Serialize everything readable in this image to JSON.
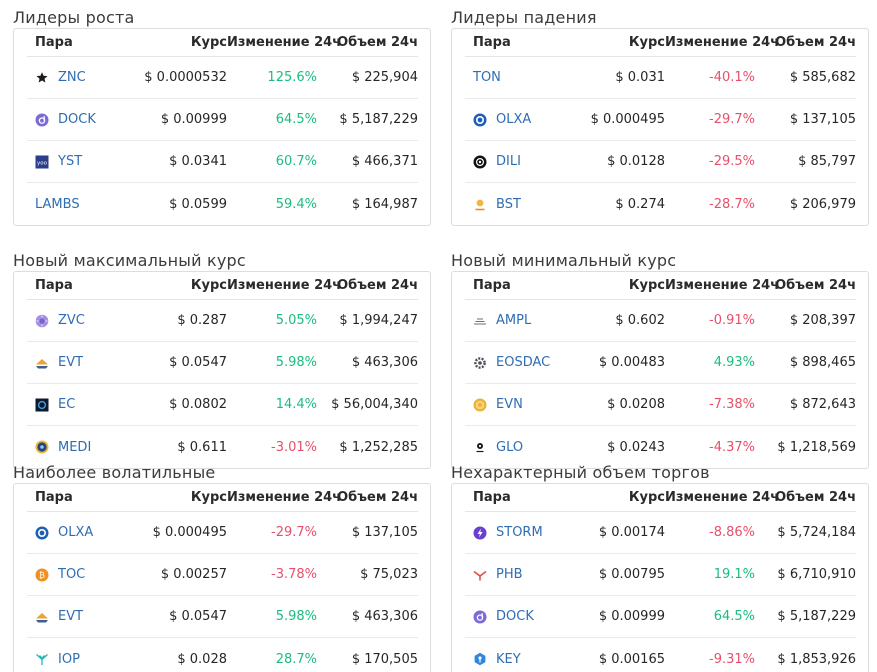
{
  "colors": {
    "positive": "#1bbd7e",
    "negative": "#e7506a",
    "link": "#2f6db3"
  },
  "headers": {
    "pair": "Пара",
    "price": "Курс",
    "change": "Изменение 24ч",
    "volume": "Объем 24ч"
  },
  "sections": [
    {
      "title": "Лидеры роста",
      "rows": [
        {
          "icon": "star-icon",
          "pair": "ZNC",
          "price": "$ 0.0000532",
          "change": "125.6%",
          "trend": "pos",
          "volume": "$ 225,904"
        },
        {
          "icon": "dock-icon",
          "pair": "DOCK",
          "price": "$ 0.00999",
          "change": "64.5%",
          "trend": "pos",
          "volume": "$ 5,187,229"
        },
        {
          "icon": "yst-icon",
          "pair": "YST",
          "price": "$ 0.0341",
          "change": "60.7%",
          "trend": "pos",
          "volume": "$ 466,371"
        },
        {
          "icon": "",
          "pair": "LAMBS",
          "price": "$ 0.0599",
          "change": "59.4%",
          "trend": "pos",
          "volume": "$ 164,987"
        }
      ]
    },
    {
      "title": "Лидеры падения",
      "rows": [
        {
          "icon": "",
          "pair": "TON",
          "price": "$ 0.031",
          "change": "-40.1%",
          "trend": "neg",
          "volume": "$ 585,682"
        },
        {
          "icon": "olxa-icon",
          "pair": "OLXA",
          "price": "$ 0.000495",
          "change": "-29.7%",
          "trend": "neg",
          "volume": "$ 137,105"
        },
        {
          "icon": "dili-icon",
          "pair": "DILI",
          "price": "$ 0.0128",
          "change": "-29.5%",
          "trend": "neg",
          "volume": "$ 85,797"
        },
        {
          "icon": "bst-icon",
          "pair": "BST",
          "price": "$ 0.274",
          "change": "-28.7%",
          "trend": "neg",
          "volume": "$ 206,979"
        }
      ]
    },
    {
      "title": "Новый максимальный курс",
      "rows": [
        {
          "icon": "zvc-icon",
          "pair": "ZVC",
          "price": "$ 0.287",
          "change": "5.05%",
          "trend": "pos",
          "volume": "$ 1,994,247"
        },
        {
          "icon": "evt-icon",
          "pair": "EVT",
          "price": "$ 0.0547",
          "change": "5.98%",
          "trend": "pos",
          "volume": "$ 463,306"
        },
        {
          "icon": "ec-icon",
          "pair": "EC",
          "price": "$ 0.0802",
          "change": "14.4%",
          "trend": "pos",
          "volume": "$ 56,004,340"
        },
        {
          "icon": "medi-icon",
          "pair": "MEDI",
          "price": "$ 0.611",
          "change": "-3.01%",
          "trend": "neg",
          "volume": "$ 1,252,285"
        }
      ]
    },
    {
      "title": "Новый минимальный курс",
      "rows": [
        {
          "icon": "ampl-icon",
          "pair": "AMPL",
          "price": "$ 0.602",
          "change": "-0.91%",
          "trend": "neg",
          "volume": "$ 208,397"
        },
        {
          "icon": "eosdac-icon",
          "pair": "EOSDAC",
          "price": "$ 0.00483",
          "change": "4.93%",
          "trend": "pos",
          "volume": "$ 898,465"
        },
        {
          "icon": "evn-icon",
          "pair": "EVN",
          "price": "$ 0.0208",
          "change": "-7.38%",
          "trend": "neg",
          "volume": "$ 872,643"
        },
        {
          "icon": "glo-icon",
          "pair": "GLO",
          "price": "$ 0.0243",
          "change": "-4.37%",
          "trend": "neg",
          "volume": "$ 1,218,569"
        }
      ]
    },
    {
      "title": "Наиболее волатильные",
      "rows": [
        {
          "icon": "olxa-icon",
          "pair": "OLXA",
          "price": "$ 0.000495",
          "change": "-29.7%",
          "trend": "neg",
          "volume": "$ 137,105"
        },
        {
          "icon": "toc-icon",
          "pair": "TOC",
          "price": "$ 0.00257",
          "change": "-3.78%",
          "trend": "neg",
          "volume": "$ 75,023"
        },
        {
          "icon": "evt-icon",
          "pair": "EVT",
          "price": "$ 0.0547",
          "change": "5.98%",
          "trend": "pos",
          "volume": "$ 463,306"
        },
        {
          "icon": "iop-icon",
          "pair": "IOP",
          "price": "$ 0.028",
          "change": "28.7%",
          "trend": "pos",
          "volume": "$ 170,505"
        }
      ]
    },
    {
      "title": "Нехарактерный объем торгов",
      "rows": [
        {
          "icon": "storm-icon",
          "pair": "STORM",
          "price": "$ 0.00174",
          "change": "-8.86%",
          "trend": "neg",
          "volume": "$ 5,724,184"
        },
        {
          "icon": "phb-icon",
          "pair": "PHB",
          "price": "$ 0.00795",
          "change": "19.1%",
          "trend": "pos",
          "volume": "$ 6,710,910"
        },
        {
          "icon": "dock-icon",
          "pair": "DOCK",
          "price": "$ 0.00999",
          "change": "64.5%",
          "trend": "pos",
          "volume": "$ 5,187,229"
        },
        {
          "icon": "key-icon",
          "pair": "KEY",
          "price": "$ 0.00165",
          "change": "-9.31%",
          "trend": "neg",
          "volume": "$ 1,853,926"
        }
      ]
    }
  ]
}
